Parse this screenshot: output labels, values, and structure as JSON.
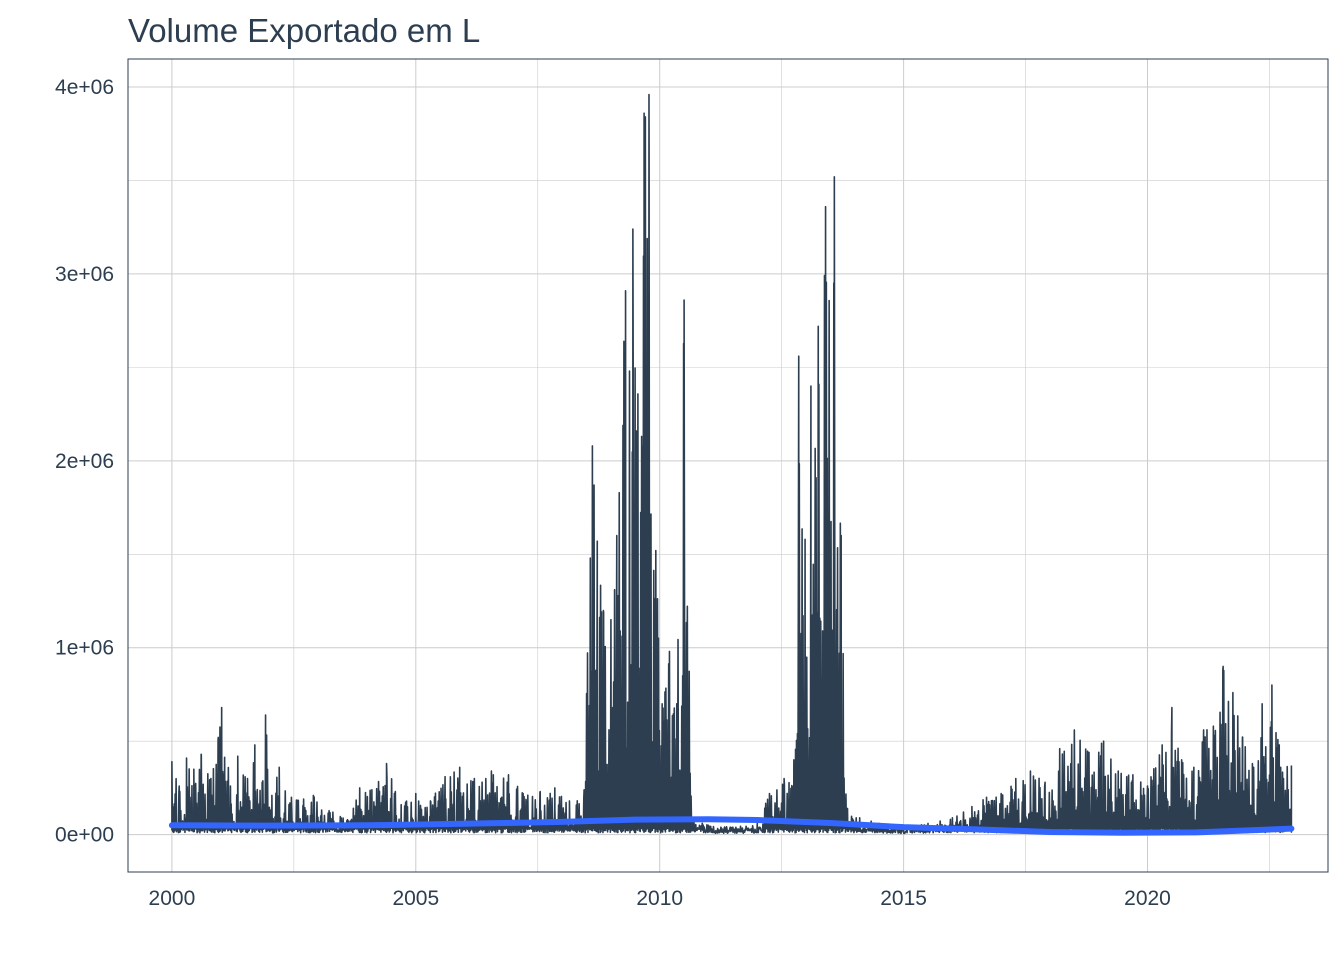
{
  "chart_data": {
    "type": "line",
    "title": "Volume Exportado em L",
    "xlabel": "",
    "ylabel": "",
    "xlim": [
      1999.1,
      2023.7
    ],
    "ylim": [
      -200000,
      4150000
    ],
    "x_ticks": [
      2000,
      2005,
      2010,
      2015,
      2020
    ],
    "x_tick_labels": [
      "2000",
      "2005",
      "2010",
      "2015",
      "2020"
    ],
    "y_ticks": [
      0,
      1000000,
      2000000,
      3000000,
      4000000
    ],
    "y_tick_labels": [
      "0e+00",
      "1e+06",
      "2e+06",
      "3e+06",
      "4e+06"
    ],
    "grid": true,
    "legend": "none",
    "colors": {
      "series": "#2c3e50",
      "trend": "#3366ff",
      "grid": "#cccccc",
      "frame": "#2c3e50",
      "text": "#2c3e50"
    },
    "series": [
      {
        "type": "line",
        "description_points": [
          [
            2000.0,
            390000
          ],
          [
            2000.15,
            260000
          ],
          [
            2000.3,
            410000
          ],
          [
            2000.45,
            350000
          ],
          [
            2000.6,
            430000
          ],
          [
            2000.8,
            300000
          ],
          [
            2000.95,
            520000
          ],
          [
            2001.02,
            680000
          ],
          [
            2001.2,
            260000
          ],
          [
            2001.35,
            420000
          ],
          [
            2001.55,
            300000
          ],
          [
            2001.7,
            480000
          ],
          [
            2001.85,
            280000
          ],
          [
            2001.92,
            640000
          ],
          [
            2002.05,
            210000
          ],
          [
            2002.2,
            360000
          ],
          [
            2002.45,
            200000
          ],
          [
            2002.7,
            190000
          ],
          [
            2002.9,
            210000
          ],
          [
            2003.3,
            120000
          ],
          [
            2003.6,
            80000
          ],
          [
            2003.85,
            250000
          ],
          [
            2004.1,
            240000
          ],
          [
            2004.4,
            380000
          ],
          [
            2004.7,
            160000
          ],
          [
            2005.0,
            220000
          ],
          [
            2005.3,
            180000
          ],
          [
            2005.6,
            310000
          ],
          [
            2005.9,
            360000
          ],
          [
            2006.2,
            300000
          ],
          [
            2006.55,
            340000
          ],
          [
            2006.9,
            320000
          ],
          [
            2007.2,
            220000
          ],
          [
            2007.55,
            230000
          ],
          [
            2007.85,
            250000
          ],
          [
            2008.15,
            180000
          ],
          [
            2008.45,
            240000
          ],
          [
            2008.62,
            2080000
          ],
          [
            2008.72,
            1570000
          ],
          [
            2008.85,
            1190000
          ],
          [
            2009.0,
            1150000
          ],
          [
            2009.12,
            1600000
          ],
          [
            2009.3,
            2910000
          ],
          [
            2009.45,
            3240000
          ],
          [
            2009.52,
            2160000
          ],
          [
            2009.68,
            3860000
          ],
          [
            2009.78,
            3960000
          ],
          [
            2009.92,
            1520000
          ],
          [
            2010.05,
            700000
          ],
          [
            2010.2,
            980000
          ],
          [
            2010.35,
            700000
          ],
          [
            2010.5,
            2860000
          ],
          [
            2010.65,
            90000
          ],
          [
            2011.0,
            50000
          ],
          [
            2011.5,
            40000
          ],
          [
            2012.0,
            60000
          ],
          [
            2012.25,
            220000
          ],
          [
            2012.55,
            300000
          ],
          [
            2012.75,
            400000
          ],
          [
            2012.85,
            2560000
          ],
          [
            2012.98,
            1580000
          ],
          [
            2013.1,
            2400000
          ],
          [
            2013.25,
            2720000
          ],
          [
            2013.4,
            3360000
          ],
          [
            2013.58,
            3520000
          ],
          [
            2013.72,
            1600000
          ],
          [
            2013.85,
            140000
          ],
          [
            2014.1,
            90000
          ],
          [
            2014.5,
            60000
          ],
          [
            2015.0,
            40000
          ],
          [
            2015.5,
            60000
          ],
          [
            2016.0,
            90000
          ],
          [
            2016.4,
            150000
          ],
          [
            2016.7,
            200000
          ],
          [
            2017.0,
            220000
          ],
          [
            2017.3,
            300000
          ],
          [
            2017.6,
            340000
          ],
          [
            2017.9,
            280000
          ],
          [
            2018.2,
            460000
          ],
          [
            2018.5,
            560000
          ],
          [
            2018.8,
            440000
          ],
          [
            2019.1,
            500000
          ],
          [
            2019.4,
            340000
          ],
          [
            2019.7,
            320000
          ],
          [
            2020.0,
            260000
          ],
          [
            2020.3,
            480000
          ],
          [
            2020.5,
            680000
          ],
          [
            2020.7,
            400000
          ],
          [
            2020.95,
            360000
          ],
          [
            2021.15,
            560000
          ],
          [
            2021.35,
            580000
          ],
          [
            2021.55,
            900000
          ],
          [
            2021.75,
            760000
          ],
          [
            2021.95,
            520000
          ],
          [
            2022.15,
            380000
          ],
          [
            2022.35,
            700000
          ],
          [
            2022.55,
            800000
          ],
          [
            2022.7,
            480000
          ],
          [
            2022.95,
            370000
          ]
        ]
      },
      {
        "type": "trend",
        "points": [
          [
            2000.0,
            50000
          ],
          [
            2002.0,
            48000
          ],
          [
            2004.0,
            50000
          ],
          [
            2006.0,
            58000
          ],
          [
            2008.0,
            68000
          ],
          [
            2009.5,
            80000
          ],
          [
            2011.0,
            82000
          ],
          [
            2012.0,
            78000
          ],
          [
            2013.5,
            62000
          ],
          [
            2015.0,
            40000
          ],
          [
            2016.5,
            28000
          ],
          [
            2018.0,
            14000
          ],
          [
            2019.5,
            10000
          ],
          [
            2021.0,
            12000
          ],
          [
            2022.0,
            22000
          ],
          [
            2022.95,
            32000
          ]
        ]
      }
    ]
  }
}
